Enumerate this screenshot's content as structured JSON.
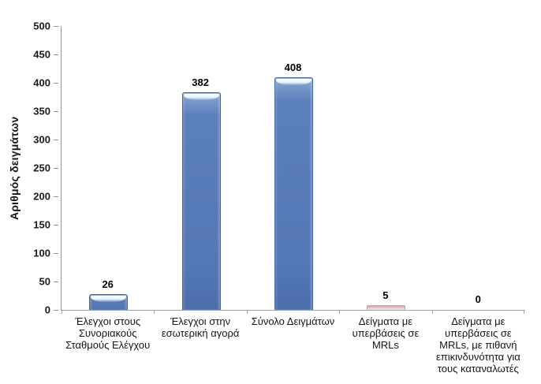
{
  "chart_data": {
    "type": "bar",
    "title": "",
    "xlabel": "",
    "ylabel": "Αριθμός δειγμάτων",
    "ylim": [
      0,
      500
    ],
    "ytick_step": 50,
    "grid": false,
    "legend": "none",
    "categories": [
      "Έλεγχοι στους Συνοριακούς Σταθμούς Ελέγχου",
      "Έλεγχοι στην εσωτερική αγορά",
      "Σύνολο Δειγμάτων",
      "Δείγματα με υπερβάσεις σε MRLs",
      "Δείγματα με υπερβάσεις σε MRLs, με πιθανή επικινδυνότητα για τους καταναλωτές"
    ],
    "values": [
      26,
      382,
      408,
      5,
      0
    ],
    "value_labels": [
      "26",
      "382",
      "408",
      "5",
      "0"
    ],
    "bar_styles": [
      "blue",
      "blue",
      "blue",
      "pink",
      "none"
    ],
    "colors": {
      "bar_blue": "#5477b5",
      "bar_blue_border": "#3f67a5",
      "bar_highlight": "#e8f1fa",
      "bar_pink": "#e9d5d5",
      "bar_pink_border": "#c9a4a4",
      "axis_line": "#8b93a1",
      "baseline": "#a3a3a3",
      "text": "#141414",
      "background": "#ffffff"
    }
  }
}
